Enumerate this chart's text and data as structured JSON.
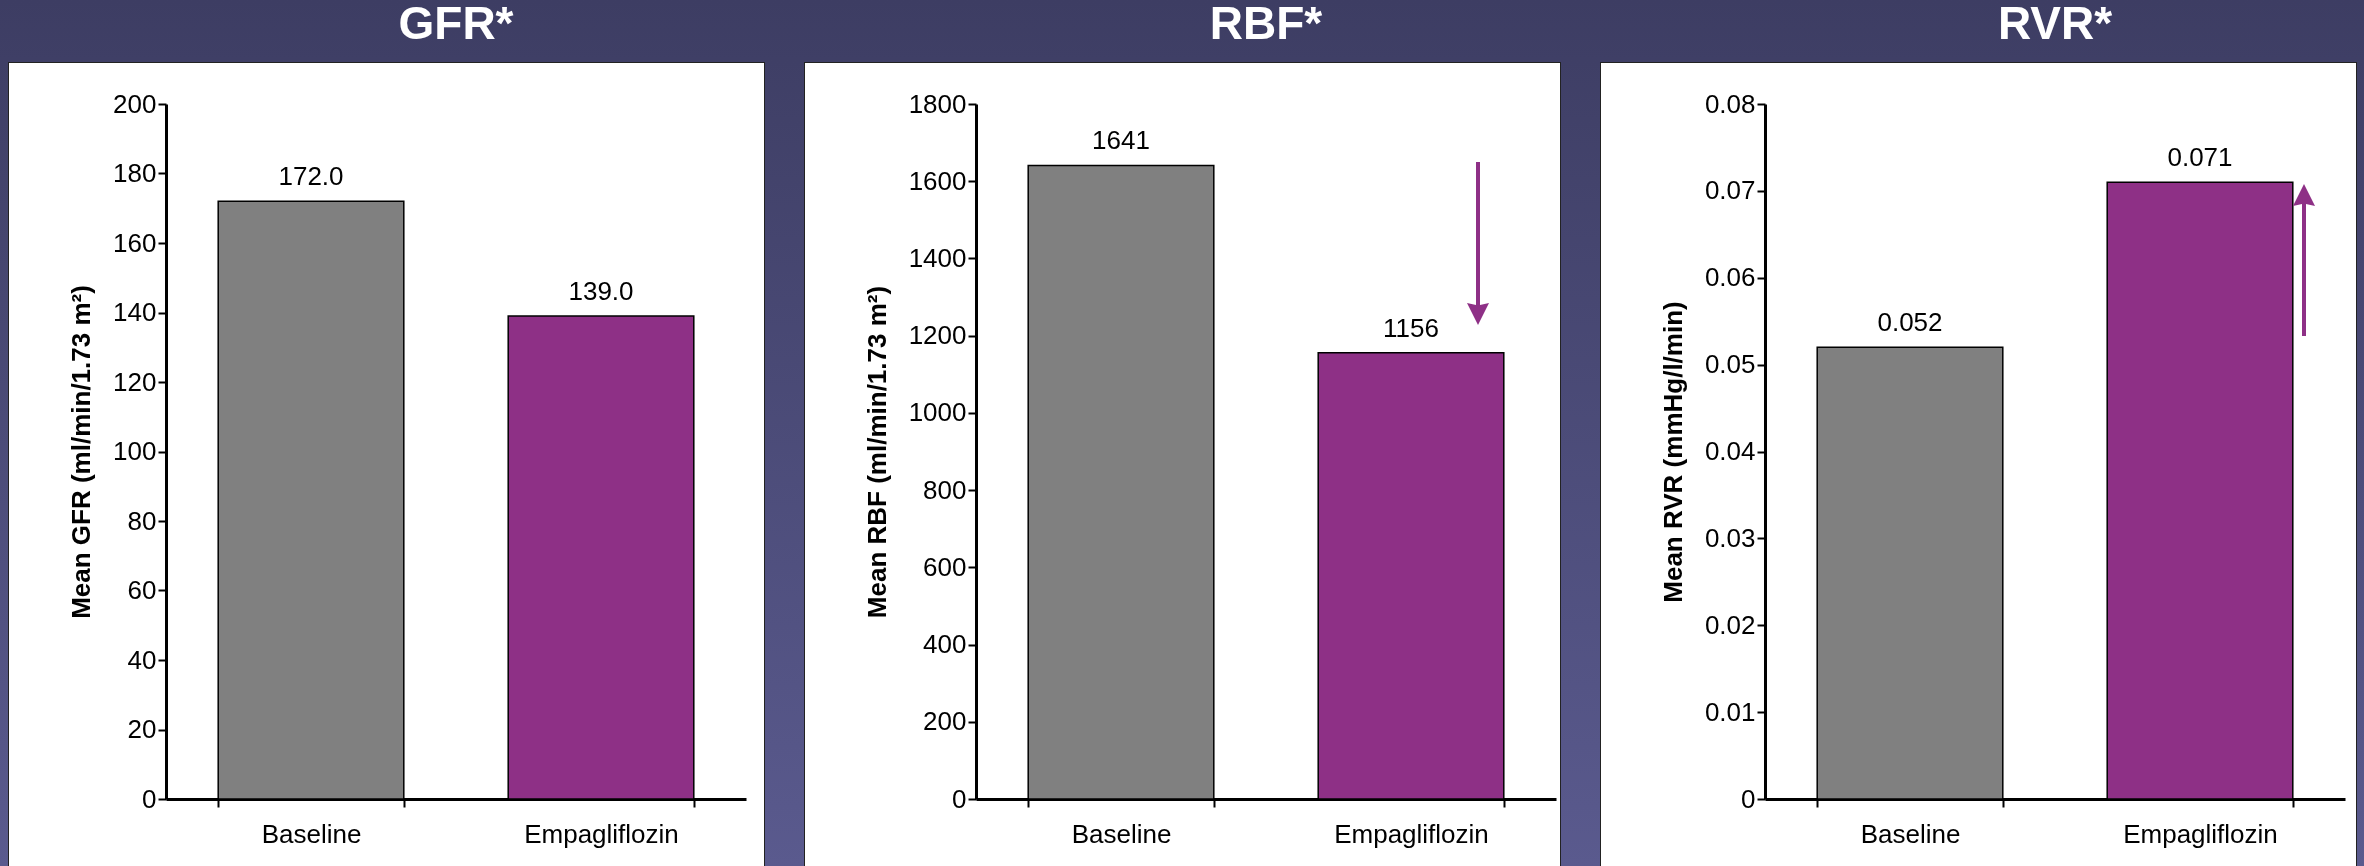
{
  "chart_data": [
    {
      "type": "bar",
      "title": "GFR*",
      "ylabel": "Mean GFR (ml/min/1.73 m²)",
      "categories": [
        "Baseline",
        "Empagliflozin"
      ],
      "values": [
        172.0,
        139.0
      ],
      "colors": [
        "#808080",
        "#8e3086"
      ],
      "value_labels": [
        "172.0",
        "139.0"
      ],
      "ylim": [
        0,
        200
      ],
      "yticks": [
        0,
        20,
        40,
        60,
        80,
        100,
        120,
        140,
        160,
        180,
        200
      ]
    },
    {
      "type": "bar",
      "title": "RBF*",
      "ylabel": "Mean RBF (ml/min/1.73 m²)",
      "categories": [
        "Baseline",
        "Empagliflozin"
      ],
      "values": [
        1641,
        1156
      ],
      "colors": [
        "#808080",
        "#8e3086"
      ],
      "data_labels": true,
      "ylim": [
        0,
        1800
      ],
      "yticks": [
        0,
        200,
        400,
        600,
        800,
        1000,
        1200,
        1400,
        1600,
        1800
      ]
    },
    {
      "type": "bar",
      "title": "RVR*",
      "ylabel": "Mean RVR (mmHg/l/min)",
      "categories": [
        "Baseline",
        "Empagliflozin"
      ],
      "values": [
        0.052,
        0.071
      ],
      "colors": [
        "#808080",
        "#8e3086"
      ],
      "data_labels": true,
      "ylim": [
        0,
        0.08
      ],
      "yticks": [
        0,
        0.01,
        0.02,
        0.03,
        0.04,
        0.05,
        0.06,
        0.07,
        0.08
      ]
    }
  ]
}
